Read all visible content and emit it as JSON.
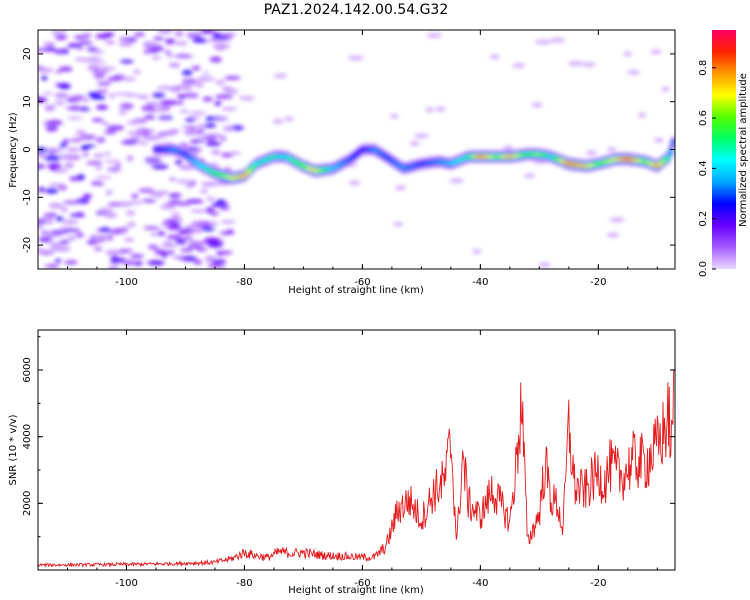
{
  "title": "PAZ1.2024.142.00.54.G32",
  "chart_data": [
    {
      "type": "heatmap",
      "xlabel": "Height of straight line (km)",
      "ylabel": "Frequency (Hz)",
      "xlim": [
        -115,
        -7
      ],
      "ylim": [
        -25,
        25
      ],
      "x_ticks": [
        -100,
        -80,
        -60,
        -40,
        -20
      ],
      "y_ticks": [
        20,
        10,
        0,
        -10,
        -20
      ],
      "colorbar": {
        "label": "Normalized spectral amplitude",
        "range": [
          0,
          0.95
        ],
        "ticks": [
          0.0,
          0.2,
          0.4,
          0.6,
          0.8
        ],
        "colormap": [
          "#e9d8ff",
          "#a55cff",
          "#6a00ff",
          "#0000ff",
          "#00a8ff",
          "#00ffff",
          "#00ff66",
          "#55ff00",
          "#ffff00",
          "#ff9900",
          "#ff2200",
          "#ff0066"
        ]
      },
      "ridge": {
        "x": [
          -95,
          -92,
          -90,
          -88,
          -85,
          -82,
          -80,
          -78,
          -75,
          -73,
          -70,
          -68,
          -65,
          -62,
          -60,
          -58,
          -56,
          -53,
          -50,
          -47,
          -45,
          -42,
          -40,
          -37,
          -35,
          -32,
          -30,
          -28,
          -25,
          -22,
          -20,
          -17,
          -15,
          -12,
          -10,
          -8,
          -7
        ],
        "y": [
          0,
          0,
          -1,
          -3,
          -5,
          -6,
          -5.5,
          -3,
          -1.5,
          -1.5,
          -3.5,
          -4.5,
          -4,
          -2,
          0,
          0,
          -1.5,
          -4,
          -3,
          -2.5,
          -3,
          -1.5,
          -1.5,
          -1.5,
          -1.5,
          -1,
          -1,
          -1.5,
          -3,
          -3.5,
          -3,
          -2,
          -2,
          -2.5,
          -3.5,
          -1.5,
          2.5
        ],
        "amplitude": [
          0.25,
          0.35,
          0.3,
          0.4,
          0.55,
          0.7,
          0.8,
          0.45,
          0.5,
          0.45,
          0.6,
          0.75,
          0.4,
          0.3,
          0.25,
          0.35,
          0.3,
          0.35,
          0.3,
          0.35,
          0.4,
          0.5,
          0.85,
          0.6,
          0.8,
          0.55,
          0.65,
          0.45,
          0.85,
          0.75,
          0.6,
          0.7,
          0.9,
          0.6,
          0.8,
          0.45,
          0.3
        ]
      },
      "noise_region_x": [
        -115,
        -82
      ]
    },
    {
      "type": "line",
      "xlabel": "Height of straight line (km)",
      "ylabel": "SNR (10 * v/v)",
      "xlim": [
        -115,
        -7
      ],
      "ylim": [
        0,
        7200
      ],
      "x_ticks": [
        -100,
        -80,
        -60,
        -40,
        -20
      ],
      "y_ticks": [
        2000,
        4000,
        6000
      ],
      "color": "#e41a1c",
      "series": [
        {
          "x": [
            -115,
            -105,
            -95,
            -90,
            -85,
            -82,
            -80,
            -78,
            -76,
            -74,
            -72,
            -70,
            -68,
            -66,
            -64,
            -62,
            -60,
            -58,
            -56,
            -54,
            -52,
            -50,
            -48,
            -46,
            -45,
            -44,
            -43,
            -42,
            -40,
            -38,
            -36,
            -35,
            -34,
            -33,
            -32,
            -30,
            -29,
            -28,
            -27,
            -26,
            -25,
            -24,
            -23,
            -22,
            -21,
            -20,
            -19,
            -18,
            -16,
            -14,
            -12,
            -10,
            -9,
            -8,
            -7.5,
            -7
          ],
          "y": [
            150,
            160,
            180,
            200,
            230,
            350,
            520,
            430,
            380,
            550,
            500,
            520,
            470,
            430,
            420,
            400,
            380,
            380,
            700,
            1800,
            2100,
            1500,
            2300,
            2700,
            3900,
            800,
            3400,
            2000,
            1600,
            2400,
            1800,
            1400,
            3000,
            5100,
            800,
            1700,
            3200,
            2100,
            2000,
            1200,
            4300,
            2500,
            2400,
            2400,
            2700,
            2900,
            2600,
            3100,
            2800,
            3300,
            3200,
            3700,
            4100,
            4600,
            3500,
            7100
          ]
        }
      ]
    }
  ]
}
